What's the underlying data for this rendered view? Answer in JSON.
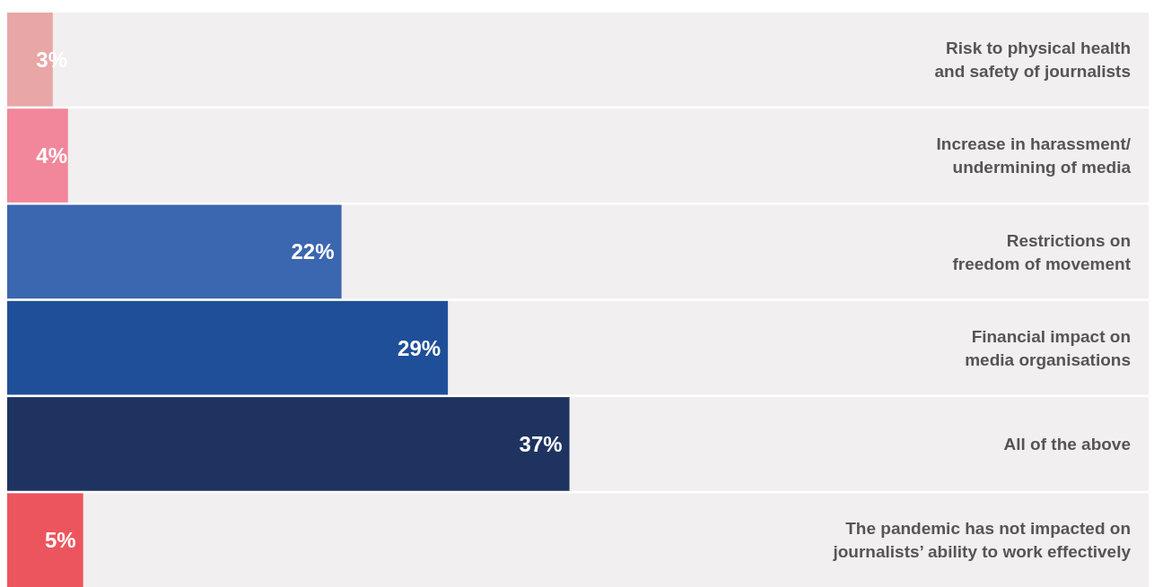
{
  "chart_data": {
    "type": "bar",
    "orientation": "horizontal",
    "categories": [
      "Risk to physical health and safety of journalists",
      "Increase in harassment/ undermining of media",
      "Restrictions on freedom of movement",
      "Financial impact on media organisations",
      "All of the above",
      "The pandemic has not impacted on journalists’ ability to work effectively"
    ],
    "values": [
      3,
      4,
      22,
      29,
      37,
      5
    ],
    "colors": [
      "#e8a7a6",
      "#f2869b",
      "#3b66b0",
      "#1f4f99",
      "#1e3360",
      "#ec555d"
    ],
    "value_labels": [
      "3%",
      "4%",
      "22%",
      "29%",
      "37%",
      "5%"
    ]
  }
}
